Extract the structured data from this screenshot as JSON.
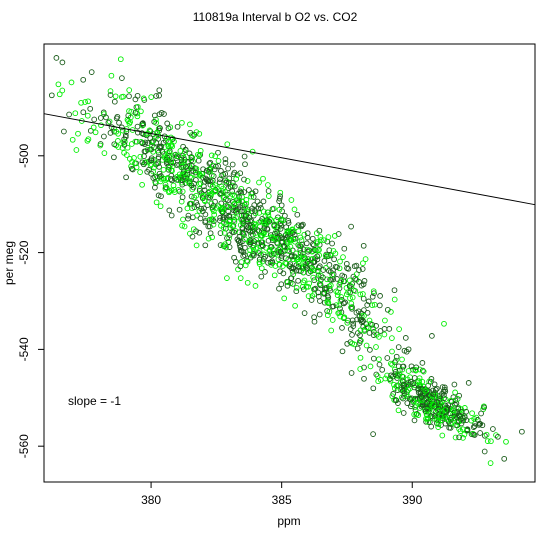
{
  "chart_data": {
    "type": "scatter",
    "title": "110819a   Interval b O2 vs. CO2",
    "xlabel": "ppm",
    "ylabel": "per meg",
    "xlim": [
      375.9,
      394.7
    ],
    "ylim": [
      -567.4,
      -476.9
    ],
    "x_ticks": [
      380,
      385,
      390
    ],
    "y_ticks": [
      -500,
      -520,
      -540,
      -560
    ],
    "annotation": "slope =  -1",
    "grid": false,
    "legend": "none",
    "fit_line": {
      "slope": -1,
      "intercept": -115.4
    },
    "colors": {
      "series_a": "#1a5c1a",
      "series_b": "#00ee00",
      "line": "#000000"
    },
    "clusters": [
      {
        "cx": 381.0,
        "cy": -502.0,
        "sx": 1.7,
        "sy": 7.5,
        "n": 520
      },
      {
        "cx": 384.8,
        "cy": -518.0,
        "sx": 1.8,
        "sy": 7.0,
        "n": 650
      },
      {
        "cx": 388.0,
        "cy": -535.0,
        "sx": 1.1,
        "sy": 6.0,
        "n": 130
      },
      {
        "cx": 390.8,
        "cy": -551.0,
        "sx": 1.0,
        "sy": 3.6,
        "n": 380
      }
    ],
    "outliers": [
      {
        "x": 376.5,
        "y": -487.3
      },
      {
        "x": 376.2,
        "y": -487.5
      },
      {
        "x": 376.6,
        "y": -486.5
      },
      {
        "x": 377.4,
        "y": -484.3
      },
      {
        "x": 377.0,
        "y": -496.7
      },
      {
        "x": 394.2,
        "y": -557.0
      },
      {
        "x": 393.0,
        "y": -563.5
      },
      {
        "x": 388.5,
        "y": -557.5
      }
    ]
  }
}
